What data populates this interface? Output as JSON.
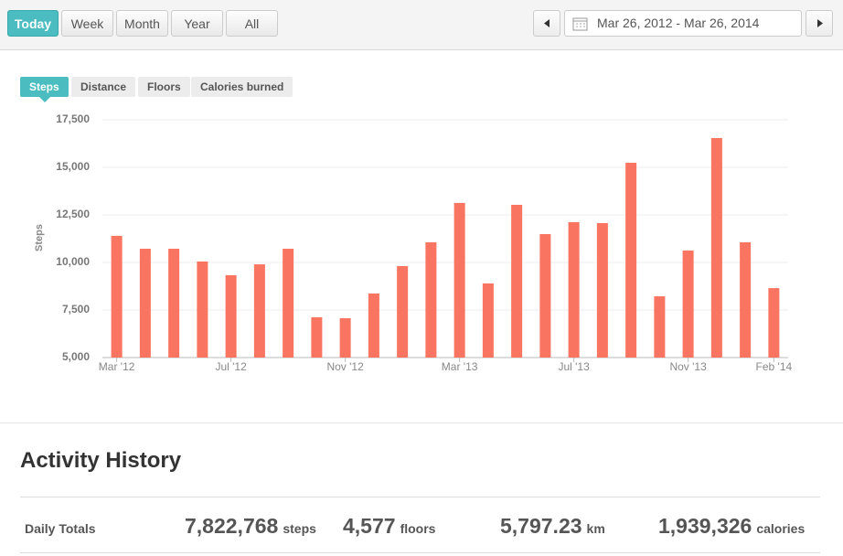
{
  "toolbar": {
    "ranges": [
      "Today",
      "Week",
      "Month",
      "Year",
      "All"
    ],
    "active_range": "Today",
    "date_range": "Mar 26, 2012 - Mar 26, 2014"
  },
  "tabs": {
    "items": [
      "Steps",
      "Distance",
      "Floors",
      "Calories burned"
    ],
    "active": "Steps"
  },
  "chart_data": {
    "type": "bar",
    "y_label": "Steps",
    "color": "#f97461",
    "grid": true,
    "categories": [
      "Mar '12",
      null,
      null,
      null,
      "Jul '12",
      null,
      null,
      null,
      "Nov '12",
      null,
      null,
      null,
      "Mar '13",
      null,
      null,
      null,
      "Jul '13",
      null,
      null,
      null,
      "Nov '13",
      null,
      null,
      "Feb '14"
    ],
    "values": [
      11400,
      10720,
      10720,
      10050,
      9330,
      9900,
      10720,
      7120,
      7070,
      8370,
      9810,
      11060,
      13130,
      8900,
      13030,
      11490,
      12120,
      12070,
      15240,
      8220,
      10630,
      16540,
      11060,
      8650
    ],
    "ylim": [
      5000,
      17500
    ],
    "yticks": [
      {
        "value": 5000,
        "label": "5,000"
      },
      {
        "value": 7500,
        "label": "7,500"
      },
      {
        "value": 10000,
        "label": "10,000"
      },
      {
        "value": 12500,
        "label": "12,500"
      },
      {
        "value": 15000,
        "label": "15,000"
      },
      {
        "value": 17500,
        "label": "17,500"
      }
    ]
  },
  "activity_history": {
    "title": "Activity History",
    "row_label": "Daily Totals",
    "totals": [
      {
        "value": "7,822,768",
        "unit": "steps"
      },
      {
        "value": "4,577",
        "unit": "floors"
      },
      {
        "value": "5,797.23",
        "unit": "km"
      },
      {
        "value": "1,939,326",
        "unit": "calories"
      }
    ]
  }
}
